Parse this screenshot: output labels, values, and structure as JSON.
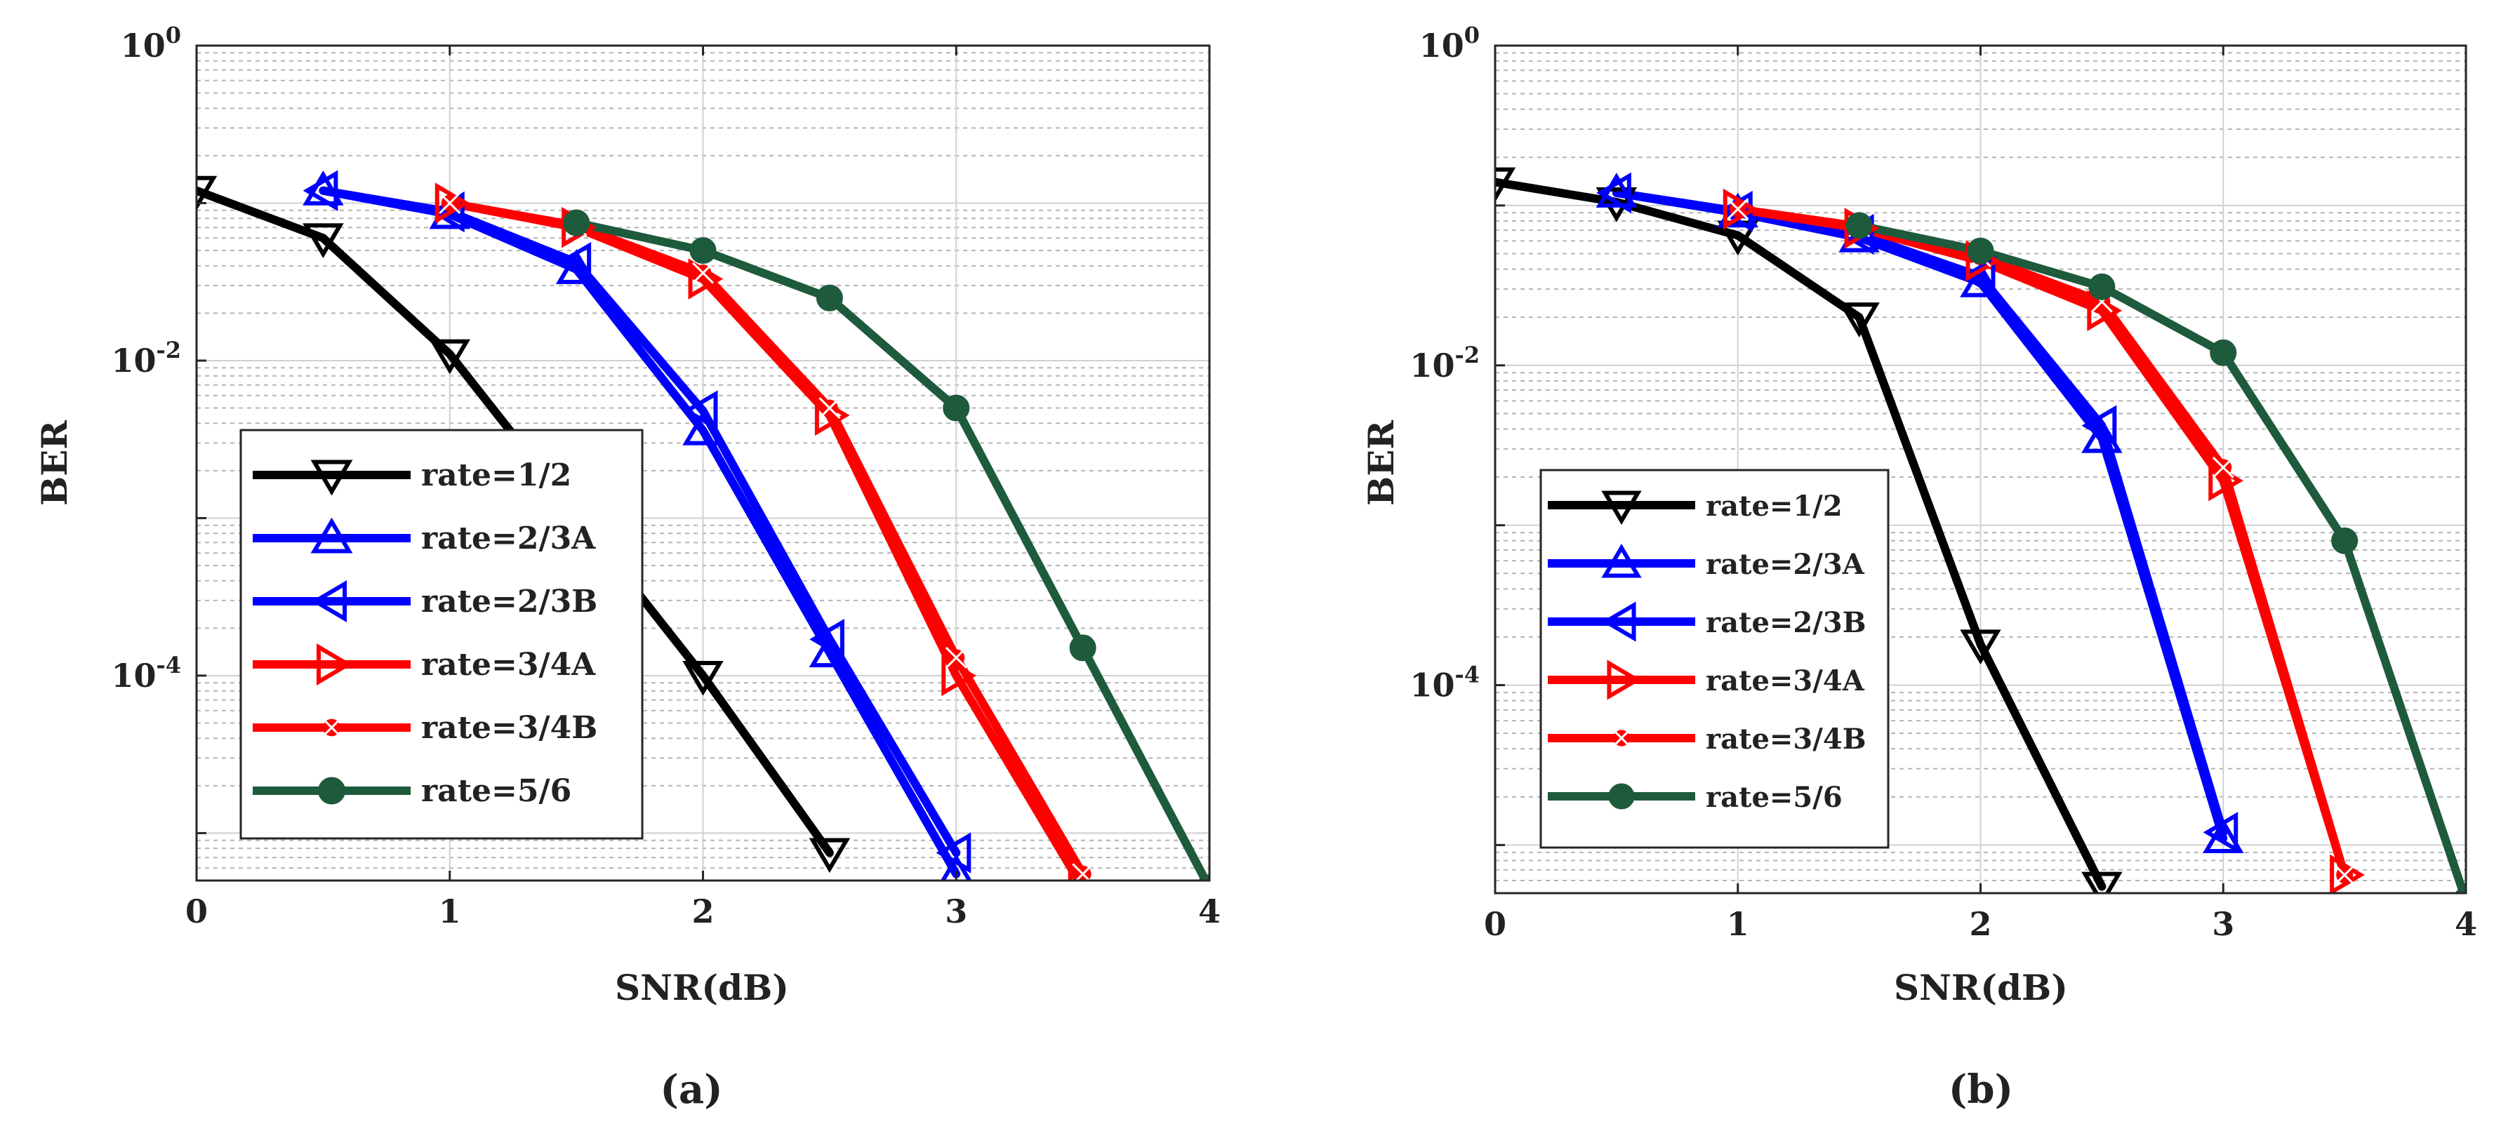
{
  "chart_data": [
    {
      "type": "line",
      "caption": "(a)",
      "xlabel": "SNR(dB)",
      "ylabel": "BER",
      "yscale": "log",
      "xlim": [
        0,
        4
      ],
      "ylim": [
        5e-06,
        1
      ],
      "grid": true,
      "legend_position": "bottom-left",
      "x_ticks": [
        "0",
        "1",
        "2",
        "3",
        "4"
      ],
      "y_ticks": [
        {
          "base": "10",
          "exp": "0"
        },
        {
          "base": "10",
          "exp": "-2"
        },
        {
          "base": "10",
          "exp": "-4"
        }
      ],
      "series": [
        {
          "name": "rate=1/2",
          "color": "#000000",
          "marker": "triangle-down",
          "x": [
            0,
            0.5,
            1,
            2,
            2.5
          ],
          "y": [
            0.12,
            0.06,
            0.011,
            0.0001,
            7.5e-06
          ]
        },
        {
          "name": "rate=2/3A",
          "color": "#0000ff",
          "marker": "triangle-up",
          "x": [
            0.5,
            1,
            1.5,
            2,
            2.5,
            3
          ],
          "y": [
            0.12,
            0.085,
            0.038,
            0.0036,
            0.00014,
            5.5e-06
          ]
        },
        {
          "name": "rate=2/3B",
          "color": "#0000ff",
          "marker": "triangle-left",
          "x": [
            0.5,
            1,
            1.5,
            2,
            2.5,
            3
          ],
          "y": [
            0.12,
            0.088,
            0.042,
            0.0048,
            0.00017,
            7.5e-06
          ]
        },
        {
          "name": "rate=3/4A",
          "color": "#ff0000",
          "marker": "triangle-right",
          "x": [
            1,
            1.5,
            2,
            2.5,
            3,
            3.5
          ],
          "y": [
            0.1,
            0.07,
            0.033,
            0.0045,
            0.0001,
            4.5e-06
          ]
        },
        {
          "name": "rate=3/4B",
          "color": "#ff0000",
          "marker": "x-circle",
          "x": [
            1,
            1.5,
            2,
            2.5,
            3,
            3.5
          ],
          "y": [
            0.1,
            0.072,
            0.036,
            0.005,
            0.00013,
            5.5e-06
          ]
        },
        {
          "name": "rate=5/6",
          "color": "#1e5a3c",
          "marker": "circle",
          "x": [
            1.5,
            2,
            2.5,
            3,
            3.5,
            4
          ],
          "y": [
            0.075,
            0.05,
            0.025,
            0.005,
            0.00015,
            4.5e-06
          ]
        }
      ]
    },
    {
      "type": "line",
      "caption": "(b)",
      "xlabel": "SNR(dB)",
      "ylabel": "BER",
      "yscale": "log",
      "xlim": [
        0,
        4
      ],
      "ylim": [
        5e-06,
        1
      ],
      "grid": true,
      "legend_position": "bottom-left",
      "x_ticks": [
        "0",
        "1",
        "2",
        "3",
        "4"
      ],
      "y_ticks": [
        {
          "base": "10",
          "exp": "0"
        },
        {
          "base": "10",
          "exp": "-2"
        },
        {
          "base": "10",
          "exp": "-4"
        }
      ],
      "series": [
        {
          "name": "rate=1/2",
          "color": "#000000",
          "marker": "triangle-down",
          "x": [
            0,
            0.5,
            1,
            1.5,
            2,
            2.5
          ],
          "y": [
            0.14,
            0.105,
            0.065,
            0.02,
            0.00018,
            5.5e-06
          ]
        },
        {
          "name": "rate=2/3A",
          "color": "#0000ff",
          "marker": "triangle-up",
          "x": [
            0.5,
            1,
            1.5,
            2,
            2.5,
            3
          ],
          "y": [
            0.12,
            0.09,
            0.063,
            0.033,
            0.0035,
            1.1e-05
          ]
        },
        {
          "name": "rate=2/3B",
          "color": "#0000ff",
          "marker": "triangle-left",
          "x": [
            0.5,
            1,
            1.5,
            2,
            2.5,
            3
          ],
          "y": [
            0.12,
            0.092,
            0.066,
            0.036,
            0.0042,
            1.2e-05
          ]
        },
        {
          "name": "rate=3/4A",
          "color": "#ff0000",
          "marker": "triangle-right",
          "x": [
            1,
            1.5,
            2,
            2.5,
            3,
            3.5
          ],
          "y": [
            0.095,
            0.072,
            0.045,
            0.022,
            0.0019,
            6.5e-06
          ]
        },
        {
          "name": "rate=3/4B",
          "color": "#ff0000",
          "marker": "x-circle",
          "x": [
            1,
            1.5,
            2,
            2.5,
            3,
            3.5
          ],
          "y": [
            0.095,
            0.074,
            0.048,
            0.025,
            0.0023,
            6.5e-06
          ]
        },
        {
          "name": "rate=5/6",
          "color": "#1e5a3c",
          "marker": "circle",
          "x": [
            1.5,
            2,
            2.5,
            3,
            3.5,
            4
          ],
          "y": [
            0.075,
            0.052,
            0.031,
            0.012,
            0.0008,
            4.5e-06
          ]
        }
      ]
    }
  ]
}
